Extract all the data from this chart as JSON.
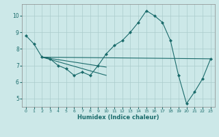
{
  "xlabel": "Humidex (Indice chaleur)",
  "xlim": [
    -0.5,
    23.5
  ],
  "ylim": [
    4.5,
    10.7
  ],
  "yticks": [
    5,
    6,
    7,
    8,
    9,
    10
  ],
  "xticks": [
    0,
    1,
    2,
    3,
    4,
    5,
    6,
    7,
    8,
    9,
    10,
    11,
    12,
    13,
    14,
    15,
    16,
    17,
    18,
    19,
    20,
    21,
    22,
    23
  ],
  "background_color": "#cce8e8",
  "grid_color": "#aacccc",
  "line_color": "#1a6b6b",
  "lines": [
    {
      "x": [
        0,
        1,
        2,
        3,
        4,
        5,
        6,
        7,
        8,
        9,
        10,
        11,
        12,
        13,
        14,
        15,
        16,
        17,
        18,
        19,
        20,
        21,
        22,
        23
      ],
      "y": [
        8.8,
        8.3,
        7.5,
        7.4,
        7.0,
        6.8,
        6.4,
        6.6,
        6.4,
        7.0,
        7.7,
        8.2,
        8.5,
        9.0,
        9.6,
        10.3,
        10.0,
        9.6,
        8.5,
        6.4,
        4.7,
        5.4,
        6.2,
        7.4
      ],
      "markers": true
    },
    {
      "x": [
        2,
        23
      ],
      "y": [
        7.5,
        7.4
      ],
      "markers": false
    },
    {
      "x": [
        2,
        10
      ],
      "y": [
        7.5,
        6.9
      ],
      "markers": false
    },
    {
      "x": [
        2,
        10
      ],
      "y": [
        7.5,
        6.4
      ],
      "markers": false
    }
  ]
}
